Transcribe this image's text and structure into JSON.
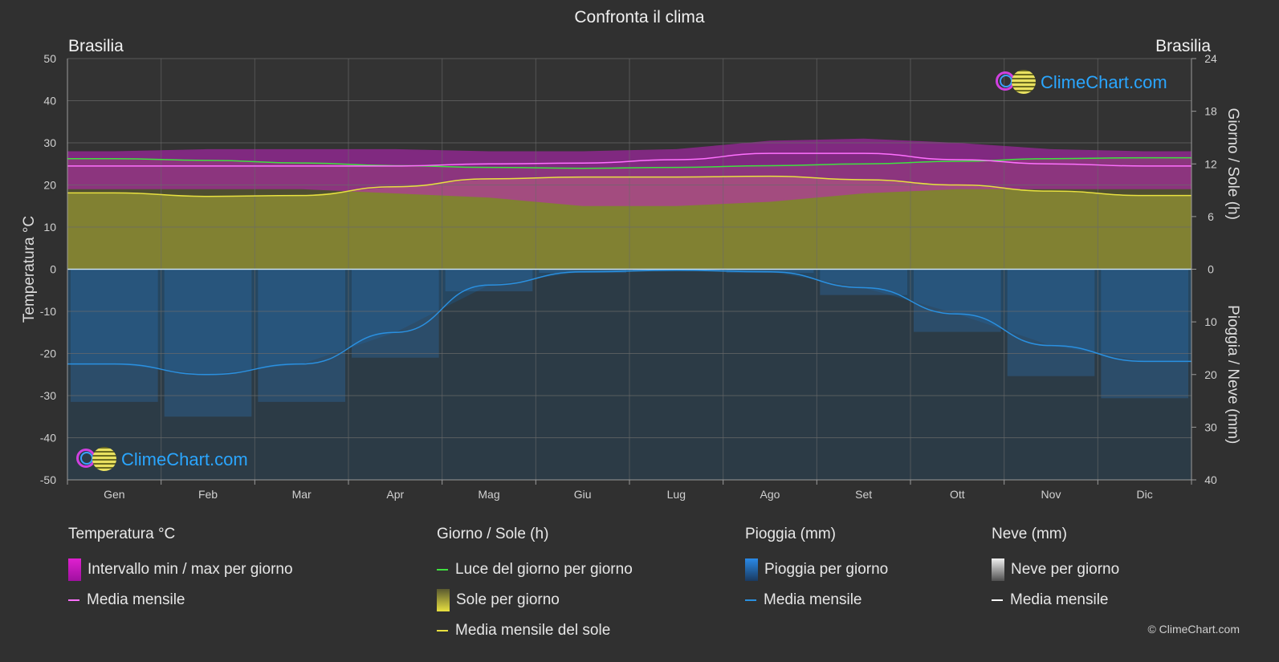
{
  "title": "Confronta il clima",
  "location_left": "Brasilia",
  "location_right": "Brasilia",
  "brand": "ClimeChart.com",
  "copyright": "© ClimeChart.com",
  "chart_data": {
    "type": "area",
    "categories": [
      "Gen",
      "Feb",
      "Mar",
      "Apr",
      "Mag",
      "Giu",
      "Lug",
      "Ago",
      "Set",
      "Ott",
      "Nov",
      "Dic"
    ],
    "left_axis": {
      "label": "Temperatura °C",
      "range": [
        -50,
        50
      ],
      "ticks": [
        50,
        40,
        30,
        20,
        10,
        0,
        -10,
        -20,
        -30,
        -40,
        -50
      ]
    },
    "right_axis_top": {
      "label": "Giorno / Sole (h)",
      "range": [
        0,
        24
      ],
      "ticks": [
        24,
        18,
        12,
        6,
        0
      ]
    },
    "right_axis_bottom": {
      "label": "Pioggia / Neve (mm)",
      "range": [
        0,
        40
      ],
      "ticks": [
        0,
        10,
        20,
        30,
        40
      ]
    },
    "grid": true,
    "series": [
      {
        "name": "Media mensile",
        "group": "temperature",
        "unit": "°C",
        "color": "#ff70ff",
        "values": [
          24.5,
          24.5,
          24.5,
          24.5,
          25.0,
          25.2,
          26.0,
          27.5,
          27.5,
          26.0,
          25.0,
          24.5
        ]
      },
      {
        "name": "Intervallo min / max per giorno",
        "group": "temperature",
        "unit": "°C",
        "color": "#e020d0",
        "min": [
          19,
          19,
          19,
          18,
          17,
          15,
          15,
          16,
          18,
          19,
          19,
          19
        ],
        "max": [
          28,
          28.5,
          28.5,
          28.5,
          28,
          28,
          28.5,
          30.5,
          31,
          30,
          28.5,
          28
        ]
      },
      {
        "name": "Luce del giorno per giorno",
        "group": "sun",
        "unit": "h",
        "color": "#40e040",
        "values": [
          12.6,
          12.4,
          12.1,
          11.8,
          11.6,
          11.5,
          11.6,
          11.8,
          12.0,
          12.3,
          12.6,
          12.7
        ]
      },
      {
        "name": "Media mensile del sole",
        "group": "sun",
        "unit": "h",
        "color": "#e8e040",
        "values": [
          8.7,
          8.3,
          8.4,
          9.4,
          10.3,
          10.5,
          10.5,
          10.6,
          10.2,
          9.6,
          8.9,
          8.4
        ]
      },
      {
        "name": "Media mensile",
        "group": "rain",
        "unit": "mm",
        "color": "#2a90e0",
        "values": [
          18,
          20,
          18,
          12,
          3,
          0.5,
          0.2,
          0.5,
          3.5,
          8.5,
          14.5,
          17.5
        ]
      },
      {
        "name": "Media mensile",
        "group": "snow",
        "unit": "mm",
        "color": "#ffffff",
        "values": [
          0,
          0,
          0,
          0,
          0,
          0,
          0,
          0,
          0,
          0,
          0,
          0
        ]
      }
    ]
  },
  "legend": [
    {
      "heading": "Temperatura °C",
      "items": [
        {
          "label": "Intervallo min / max per giorno",
          "swatch": "rect",
          "color": "#e020d0"
        },
        {
          "label": "Media mensile",
          "swatch": "line",
          "color": "#ff70ff"
        }
      ]
    },
    {
      "heading": "Giorno / Sole (h)",
      "items": [
        {
          "label": "Luce del giorno per giorno",
          "swatch": "line",
          "color": "#40e040"
        },
        {
          "label": "Sole per giorno",
          "swatch": "rect",
          "color": "#d8d040"
        },
        {
          "label": "Media mensile del sole",
          "swatch": "line",
          "color": "#e8e040"
        }
      ]
    },
    {
      "heading": "Pioggia (mm)",
      "items": [
        {
          "label": "Pioggia per giorno",
          "swatch": "rect",
          "color": "#2a7ad0"
        },
        {
          "label": "Media mensile",
          "swatch": "line",
          "color": "#2a90e0"
        }
      ]
    },
    {
      "heading": "Neve (mm)",
      "items": [
        {
          "label": "Neve per giorno",
          "swatch": "rect",
          "color": "#d0d0d0"
        },
        {
          "label": "Media mensile",
          "swatch": "line",
          "color": "#ffffff"
        }
      ]
    }
  ]
}
